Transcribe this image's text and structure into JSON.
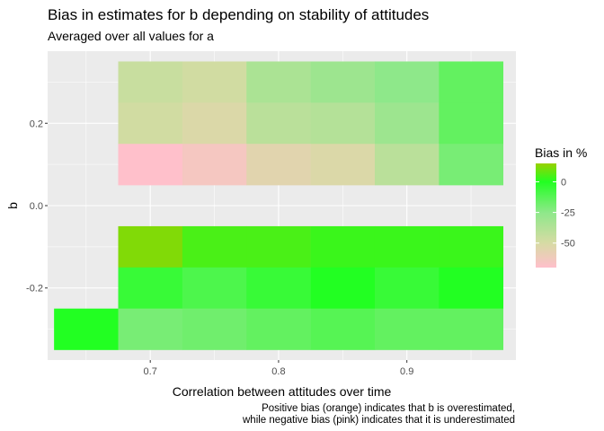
{
  "chart_data": {
    "type": "heatmap",
    "title": "Bias in estimates for b depending on stability of attitudes",
    "subtitle": "Averaged over all values for a",
    "xlabel": "Correlation between attitudes over time",
    "ylabel": "b",
    "caption_lines": [
      "Positive bias (orange) indicates that b is overestimated,",
      "while negative bias (pink) indicates that it is underestimated"
    ],
    "xlim": [
      0.62,
      0.985
    ],
    "ylim": [
      -0.375,
      0.375
    ],
    "x_ticks": [
      0.7,
      0.8,
      0.9
    ],
    "x_tick_labels": [
      "0.7",
      "0.8",
      "0.9"
    ],
    "y_ticks": [
      -0.2,
      0.0,
      0.2
    ],
    "y_tick_labels": [
      "-0.2",
      "0.0",
      "0.2"
    ],
    "grid": true,
    "legend": {
      "title": "Bias in %",
      "position": "right",
      "ticks": [
        0,
        -25,
        -50
      ],
      "tick_labels": [
        "0",
        "-25",
        "-50"
      ],
      "range": [
        -70,
        15
      ],
      "gradient": [
        {
          "value": 15,
          "color": "#99d100"
        },
        {
          "value": 0,
          "color": "#22ff22"
        },
        {
          "value": -25,
          "color": "#8ee88a"
        },
        {
          "value": -50,
          "color": "#d7dba4"
        },
        {
          "value": -70,
          "color": "#ffc0cb"
        }
      ]
    },
    "x_centers": [
      0.65,
      0.7,
      0.75,
      0.8,
      0.85,
      0.9,
      0.95
    ],
    "y_centers": [
      0.3,
      0.2,
      0.1,
      -0.1,
      -0.2,
      -0.3
    ],
    "cell_width": 0.05,
    "cell_height": 0.1,
    "values": [
      [
        null,
        -45,
        -48,
        -35,
        -30,
        -25,
        -15
      ],
      [
        null,
        -48,
        -52,
        -40,
        -38,
        -30,
        -15
      ],
      [
        null,
        -70,
        -65,
        -55,
        -52,
        -40,
        -20
      ],
      [
        null,
        12,
        5,
        5,
        3,
        3,
        3
      ],
      [
        null,
        -5,
        -10,
        -5,
        0,
        -5,
        0
      ],
      [
        0,
        -20,
        -18,
        -15,
        -12,
        -15,
        -15
      ]
    ]
  }
}
